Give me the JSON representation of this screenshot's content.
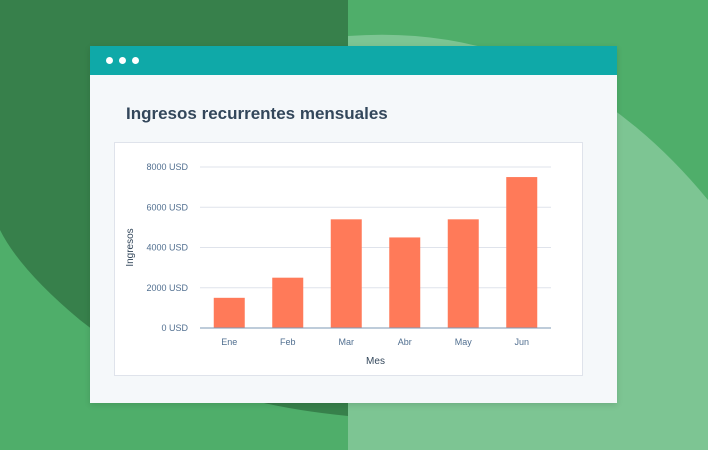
{
  "colors": {
    "background": "#4fae6a",
    "titlebar": "#0fa9a8",
    "bar": "#ff7a59",
    "grid": "#dfe3eb"
  },
  "window": {
    "dots": [
      "dot-1",
      "dot-2",
      "dot-3"
    ]
  },
  "chart_data": {
    "type": "bar",
    "title": "Ingresos recurrentes mensuales",
    "xlabel": "Mes",
    "ylabel": "Ingresos",
    "categories": [
      "Ene",
      "Feb",
      "Mar",
      "Abr",
      "May",
      "Jun"
    ],
    "values": [
      1500,
      2500,
      5400,
      4500,
      5400,
      7500
    ],
    "yticks": [
      0,
      2000,
      4000,
      6000,
      8000
    ],
    "ytick_labels": [
      "0 USD",
      "2000 USD",
      "4000 USD",
      "6000 USD",
      "8000 USD"
    ],
    "ylim": [
      0,
      8000
    ],
    "grid": true,
    "legend": "none"
  }
}
